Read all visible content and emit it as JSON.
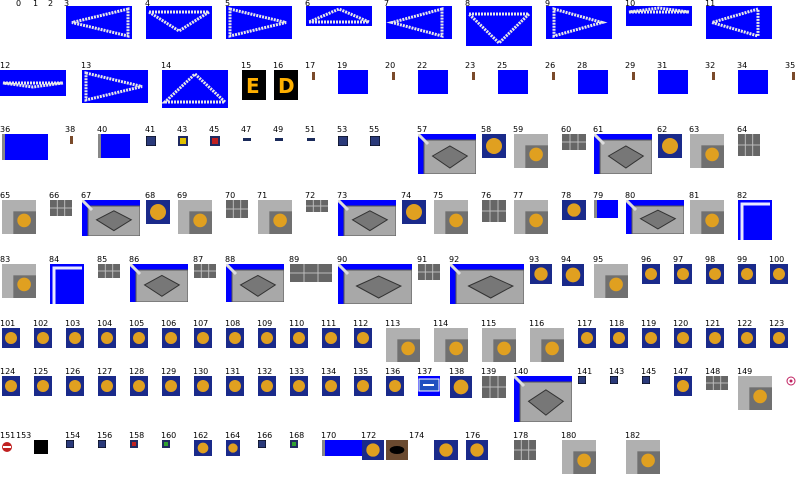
{
  "sheet": {
    "labels": [
      "0",
      "1",
      "2",
      "3",
      "4",
      "5",
      "6",
      "7",
      "8",
      "9",
      "10",
      "11",
      "12",
      "13",
      "14",
      "15",
      "16",
      "17",
      "19",
      "20",
      "22",
      "23",
      "25",
      "26",
      "28",
      "29",
      "31",
      "32",
      "34",
      "35",
      "36",
      "38",
      "40",
      "41",
      "43",
      "45",
      "47",
      "49",
      "51",
      "53",
      "55",
      "57",
      "58",
      "59",
      "60",
      "61",
      "62",
      "63",
      "64",
      "65",
      "66",
      "67",
      "68",
      "69",
      "70",
      "71",
      "72",
      "73",
      "74",
      "75",
      "76",
      "77",
      "78",
      "79",
      "80",
      "81",
      "82",
      "83",
      "84",
      "85",
      "86",
      "87",
      "88",
      "89",
      "90",
      "91",
      "92",
      "93",
      "94",
      "95",
      "96",
      "97",
      "98",
      "99",
      "100",
      "101",
      "102",
      "103",
      "104",
      "105",
      "106",
      "107",
      "108",
      "109",
      "110",
      "111",
      "112",
      "113",
      "114",
      "115",
      "116",
      "117",
      "118",
      "119",
      "120",
      "121",
      "122",
      "123",
      "124",
      "125",
      "126",
      "127",
      "128",
      "129",
      "130",
      "131",
      "132",
      "133",
      "134",
      "135",
      "136",
      "137",
      "138",
      "139",
      "140",
      "141",
      "143",
      "145",
      "147",
      "148",
      "149",
      "151",
      "153",
      "154",
      "156",
      "158",
      "160",
      "162",
      "164",
      "166",
      "168",
      "170",
      "172",
      "174",
      "176",
      "178",
      "180",
      "182"
    ],
    "colors": {
      "background": "#ffffff",
      "transparent_key": "#0000ff"
    }
  }
}
